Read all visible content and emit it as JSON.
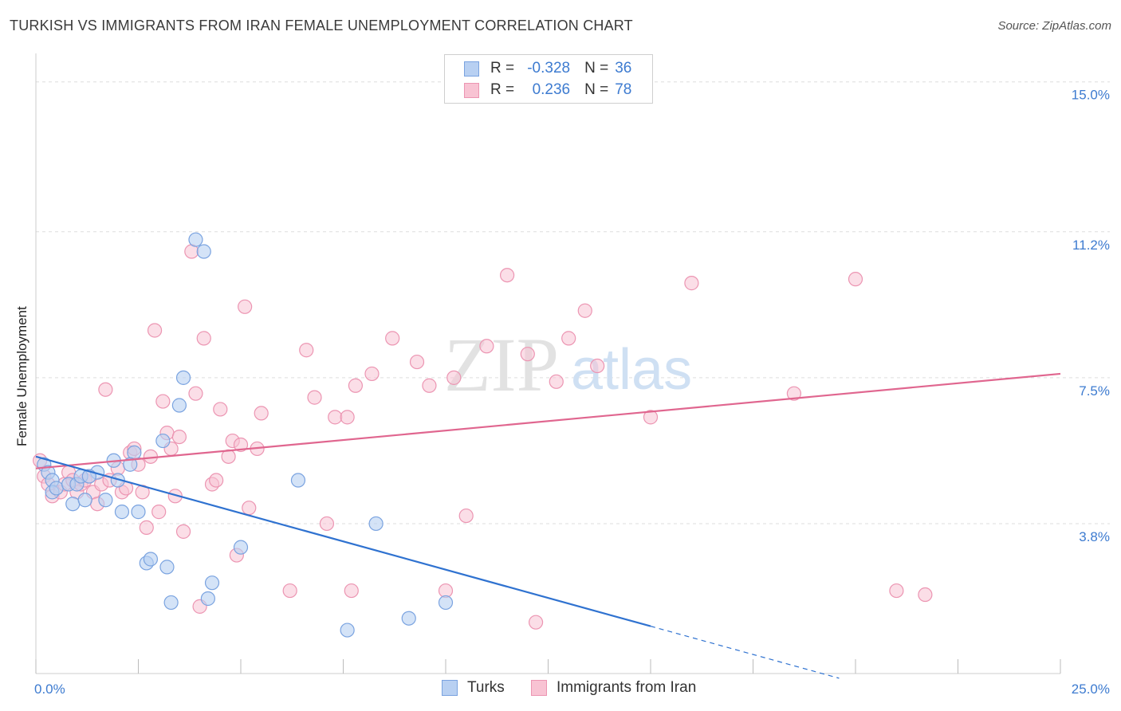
{
  "title": "TURKISH VS IMMIGRANTS FROM IRAN FEMALE UNEMPLOYMENT CORRELATION CHART",
  "source": "Source: ZipAtlas.com",
  "watermark": {
    "zip": "ZIP",
    "atlas": "atlas"
  },
  "legend_top": [
    {
      "r_label": "R =",
      "r_value": "-0.328",
      "n_label": "N =",
      "n_value": "36"
    },
    {
      "r_label": "R =",
      "r_value": "0.236",
      "n_label": "N =",
      "n_value": "78"
    }
  ],
  "legend_bottom": [
    "Turks",
    "Immigrants from Iran"
  ],
  "colors": {
    "turks_fill": "#b8d0f2",
    "turks_stroke": "#7aa3e0",
    "turks_line": "#2f72d0",
    "iran_fill": "#f8c3d3",
    "iran_stroke": "#ec95b2",
    "iran_line": "#e0668f",
    "axis_text": "#3d7bd0",
    "grid": "#dddddd"
  },
  "chart_data": {
    "type": "scatter",
    "xlabel": "",
    "ylabel": "Female Unemployment",
    "xlim": [
      0,
      25
    ],
    "ylim": [
      0,
      15.5
    ],
    "x_tick_labels": [
      {
        "value": 0,
        "label": "0.0%"
      },
      {
        "value": 25,
        "label": "25.0%"
      }
    ],
    "y_tick_labels": [
      {
        "value": 3.8,
        "label": "3.8%"
      },
      {
        "value": 7.5,
        "label": "7.5%"
      },
      {
        "value": 11.2,
        "label": "11.2%"
      },
      {
        "value": 15.0,
        "label": "15.0%"
      }
    ],
    "grid": true,
    "series": [
      {
        "name": "Turks",
        "stats": {
          "R": -0.328,
          "N": 36
        },
        "trend": {
          "x0": 0,
          "y0": 5.5,
          "x1": 15,
          "y1": 1.2,
          "dashed_to_x": 19.6
        },
        "points": [
          [
            0.2,
            5.3
          ],
          [
            0.3,
            5.1
          ],
          [
            0.4,
            4.9
          ],
          [
            0.4,
            4.6
          ],
          [
            0.5,
            4.7
          ],
          [
            0.8,
            4.8
          ],
          [
            0.9,
            4.3
          ],
          [
            1.0,
            4.8
          ],
          [
            1.1,
            5.0
          ],
          [
            1.2,
            4.4
          ],
          [
            1.5,
            5.1
          ],
          [
            1.7,
            4.4
          ],
          [
            1.9,
            5.4
          ],
          [
            2.0,
            4.9
          ],
          [
            2.1,
            4.1
          ],
          [
            2.4,
            5.6
          ],
          [
            2.5,
            4.1
          ],
          [
            2.7,
            2.8
          ],
          [
            2.8,
            2.9
          ],
          [
            3.1,
            5.9
          ],
          [
            3.2,
            2.7
          ],
          [
            3.3,
            1.8
          ],
          [
            3.5,
            6.8
          ],
          [
            3.6,
            7.5
          ],
          [
            3.9,
            11.0
          ],
          [
            4.1,
            10.7
          ],
          [
            4.2,
            1.9
          ],
          [
            4.3,
            2.3
          ],
          [
            5.0,
            3.2
          ],
          [
            6.4,
            4.9
          ],
          [
            7.6,
            1.1
          ],
          [
            8.3,
            3.8
          ],
          [
            9.1,
            1.4
          ],
          [
            10.0,
            1.8
          ],
          [
            2.3,
            5.3
          ],
          [
            1.3,
            5.0
          ]
        ]
      },
      {
        "name": "Immigrants from Iran",
        "stats": {
          "R": 0.236,
          "N": 78
        },
        "trend": {
          "x0": 0,
          "y0": 5.2,
          "x1": 25,
          "y1": 7.6
        },
        "points": [
          [
            0.1,
            5.4
          ],
          [
            0.2,
            5.0
          ],
          [
            0.3,
            4.8
          ],
          [
            0.4,
            4.5
          ],
          [
            0.6,
            4.6
          ],
          [
            0.7,
            4.8
          ],
          [
            0.8,
            5.1
          ],
          [
            0.9,
            4.9
          ],
          [
            1.0,
            4.6
          ],
          [
            1.1,
            4.8
          ],
          [
            1.2,
            4.9
          ],
          [
            1.3,
            5.0
          ],
          [
            1.4,
            4.6
          ],
          [
            1.5,
            4.3
          ],
          [
            1.6,
            4.8
          ],
          [
            1.7,
            7.2
          ],
          [
            1.8,
            4.9
          ],
          [
            2.0,
            5.2
          ],
          [
            2.1,
            4.6
          ],
          [
            2.2,
            4.7
          ],
          [
            2.3,
            5.6
          ],
          [
            2.4,
            5.7
          ],
          [
            2.5,
            5.3
          ],
          [
            2.6,
            4.6
          ],
          [
            2.7,
            3.7
          ],
          [
            2.8,
            5.5
          ],
          [
            2.9,
            8.7
          ],
          [
            3.0,
            4.1
          ],
          [
            3.1,
            6.9
          ],
          [
            3.2,
            6.1
          ],
          [
            3.3,
            5.7
          ],
          [
            3.4,
            4.5
          ],
          [
            3.5,
            6.0
          ],
          [
            3.6,
            3.6
          ],
          [
            3.8,
            10.7
          ],
          [
            3.9,
            7.1
          ],
          [
            4.0,
            1.7
          ],
          [
            4.1,
            8.5
          ],
          [
            4.3,
            4.8
          ],
          [
            4.4,
            4.9
          ],
          [
            4.5,
            6.7
          ],
          [
            4.7,
            5.5
          ],
          [
            4.8,
            5.9
          ],
          [
            4.9,
            3.0
          ],
          [
            5.0,
            5.8
          ],
          [
            5.1,
            9.3
          ],
          [
            5.2,
            4.2
          ],
          [
            5.4,
            5.7
          ],
          [
            5.5,
            6.6
          ],
          [
            6.2,
            2.1
          ],
          [
            6.6,
            8.2
          ],
          [
            6.8,
            7.0
          ],
          [
            7.1,
            3.8
          ],
          [
            7.3,
            6.5
          ],
          [
            7.6,
            6.5
          ],
          [
            7.7,
            2.1
          ],
          [
            7.8,
            7.3
          ],
          [
            8.2,
            7.6
          ],
          [
            8.7,
            8.5
          ],
          [
            9.3,
            7.9
          ],
          [
            9.6,
            7.3
          ],
          [
            10.0,
            2.1
          ],
          [
            10.2,
            7.5
          ],
          [
            10.5,
            4.0
          ],
          [
            11.0,
            8.3
          ],
          [
            11.5,
            10.1
          ],
          [
            12.0,
            8.1
          ],
          [
            12.2,
            1.3
          ],
          [
            12.7,
            7.4
          ],
          [
            13.0,
            8.5
          ],
          [
            13.4,
            9.2
          ],
          [
            13.7,
            7.8
          ],
          [
            15.0,
            6.5
          ],
          [
            16.0,
            9.9
          ],
          [
            18.5,
            7.1
          ],
          [
            20.0,
            10.0
          ],
          [
            21.0,
            2.1
          ],
          [
            21.7,
            2.0
          ]
        ]
      }
    ]
  }
}
